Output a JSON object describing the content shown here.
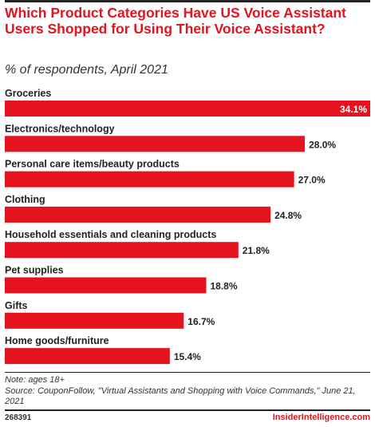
{
  "header": {
    "title": "Which Product Categories Have US Voice Assistant Users Shopped for Using Their Voice Assistant?",
    "subtitle": "% of respondents, April 2021"
  },
  "chart_data": {
    "type": "bar",
    "orientation": "horizontal",
    "categories": [
      "Groceries",
      "Electronics/technology",
      "Personal care items/beauty products",
      "Clothing",
      "Household essentials and cleaning products",
      "Pet supplies",
      "Gifts",
      "Home goods/furniture"
    ],
    "values": [
      34.1,
      28.0,
      27.0,
      24.8,
      21.8,
      18.8,
      16.7,
      15.4
    ],
    "value_labels": [
      "34.1%",
      "28.0%",
      "27.0%",
      "24.8%",
      "21.8%",
      "18.8%",
      "16.7%",
      "15.4%"
    ],
    "bar_color": "#e5131d",
    "xlim": [
      0,
      34.1
    ],
    "grid": false,
    "legend": "none"
  },
  "footer": {
    "note": "Note: ages 18+",
    "source": "Source: CouponFollow, \"Virtual Assistants and Shopping with Voice Commands,\" June 21, 2021",
    "chart_id": "268391",
    "brand": "InsiderIntelligence.com"
  },
  "colors": {
    "accent": "#e5131d",
    "text": "#222222"
  }
}
